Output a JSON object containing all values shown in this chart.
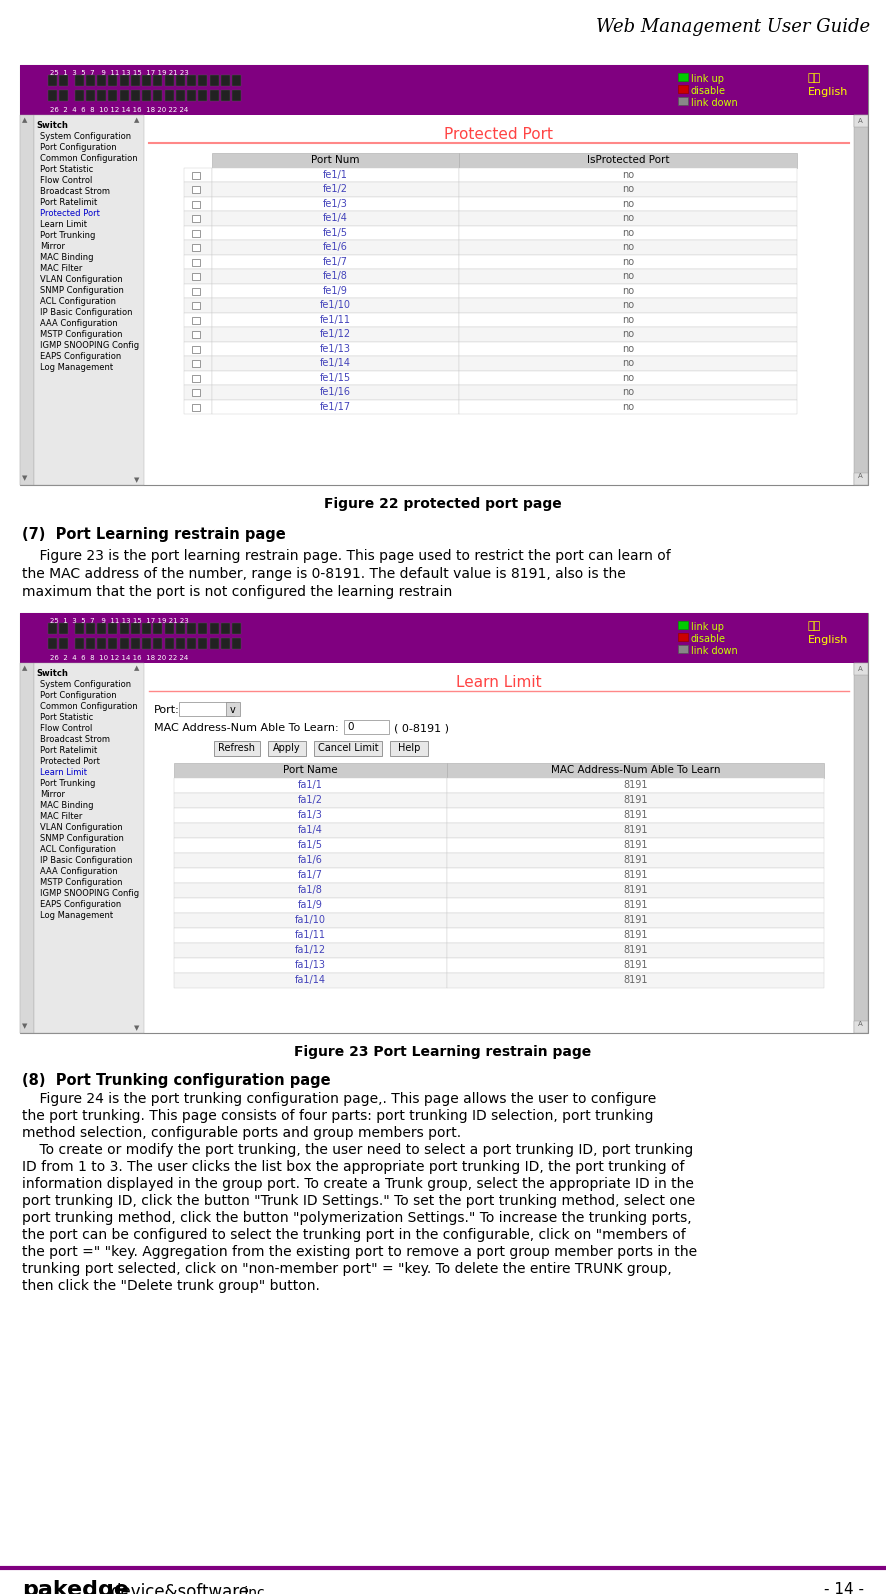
{
  "title": "Web Management User Guide",
  "page_bg": "#ffffff",
  "purple_color": "#800080",
  "figure22_caption": "Figure 22 protected port page",
  "section7_title": "(7)  Port Learning restrain page",
  "section7_line1": "    Figure 23 is the port learning restrain page. This page used to restrict the port can learn of",
  "section7_line2": "the MAC address of the number, range is 0-8191. The default value is 8191, also is the",
  "section7_line3": "maximum that the port is not configured the learning restrain",
  "figure23_caption": "Figure 23 Port Learning restrain page",
  "section8_title": "(8)  Port Trunking configuration page",
  "section8_lines": [
    "    Figure 24 is the port trunking configuration page,. This page allows the user to configure",
    "the port trunking. This page consists of four parts: port trunking ID selection, port trunking",
    "method selection, configurable ports and group members port.",
    "    To create or modify the port trunking, the user need to select a port trunking ID, port trunking",
    "ID from 1 to 3. The user clicks the list box the appropriate port trunking ID, the port trunking of",
    "information displayed in the group port. To create a Trunk group, select the appropriate ID in the",
    "port trunking ID, click the button \"Trunk ID Settings.\" To set the port trunking method, select one",
    "port trunking method, click the button \"polymerization Settings.\" To increase the trunking ports,",
    "the port can be configured to select the trunking port in the configurable, click on \"members of",
    "the port =\" \"key. Aggregation from the existing port to remove a port group member ports in the",
    "trunking port selected, click on \"non-member port\" = \"key. To delete the entire TRUNK group,",
    "then click the \"Delete trunk group\" button."
  ],
  "footer_right": "- 14 -",
  "protected_port_title": "Protected Port",
  "protected_port_headers": [
    "Port Num",
    "IsProtected Port"
  ],
  "protected_port_rows": [
    "fe1/1",
    "fe1/2",
    "fe1/3",
    "fe1/4",
    "fe1/5",
    "fe1/6",
    "fe1/7",
    "fe1/8",
    "fe1/9",
    "fe1/10",
    "fe1/11",
    "fe1/12",
    "fe1/13",
    "fe1/14",
    "fe1/15",
    "fe1/16",
    "fe1/17"
  ],
  "learn_limit_title": "Learn Limit",
  "learn_limit_headers": [
    "Port Name",
    "MAC Address-Num Able To Learn"
  ],
  "learn_limit_rows": [
    "fa1/1",
    "fa1/2",
    "fa1/3",
    "fa1/4",
    "fa1/5",
    "fa1/6",
    "fa1/7",
    "fa1/8",
    "fa1/9",
    "fa1/10",
    "fa1/11",
    "fa1/12",
    "fa1/13",
    "fa1/14"
  ],
  "sidebar_items_22": [
    [
      "Switch",
      true,
      false
    ],
    [
      "System Configuration",
      false,
      false
    ],
    [
      "Port Configuration",
      false,
      false
    ],
    [
      "Common Configuration",
      false,
      false
    ],
    [
      "Port Statistic",
      false,
      false
    ],
    [
      "Flow Control",
      false,
      false
    ],
    [
      "Broadcast Strom",
      false,
      false
    ],
    [
      "Port Ratelimit",
      false,
      false
    ],
    [
      "Protected Port",
      false,
      true
    ],
    [
      "Learn Limit",
      false,
      false
    ],
    [
      "Port Trunking",
      false,
      false
    ],
    [
      "Mirror",
      false,
      false
    ],
    [
      "MAC Binding",
      false,
      false
    ],
    [
      "MAC Filter",
      false,
      false
    ],
    [
      "VLAN Configuration",
      false,
      false
    ],
    [
      "SNMP Configuration",
      false,
      false
    ],
    [
      "ACL Configuration",
      false,
      false
    ],
    [
      "IP Basic Configuration",
      false,
      false
    ],
    [
      "AAA Configuration",
      false,
      false
    ],
    [
      "MSTP Configuration",
      false,
      false
    ],
    [
      "IGMP SNOOPING Config",
      false,
      false
    ],
    [
      "EAPS Configuration",
      false,
      false
    ],
    [
      "Log Management",
      false,
      false
    ]
  ],
  "sidebar_items_23": [
    [
      "Switch",
      true,
      false
    ],
    [
      "System Configuration",
      false,
      false
    ],
    [
      "Port Configuration",
      false,
      false
    ],
    [
      "Common Configuration",
      false,
      false
    ],
    [
      "Port Statistic",
      false,
      false
    ],
    [
      "Flow Control",
      false,
      false
    ],
    [
      "Broadcast Strom",
      false,
      false
    ],
    [
      "Port Ratelimit",
      false,
      false
    ],
    [
      "Protected Port",
      false,
      false
    ],
    [
      "Learn Limit",
      false,
      true
    ],
    [
      "Port Trunking",
      false,
      false
    ],
    [
      "Mirror",
      false,
      false
    ],
    [
      "MAC Binding",
      false,
      false
    ],
    [
      "MAC Filter",
      false,
      false
    ],
    [
      "VLAN Configuration",
      false,
      false
    ],
    [
      "SNMP Configuration",
      false,
      false
    ],
    [
      "ACL Configuration",
      false,
      false
    ],
    [
      "IP Basic Configuration",
      false,
      false
    ],
    [
      "AAA Configuration",
      false,
      false
    ],
    [
      "MSTP Configuration",
      false,
      false
    ],
    [
      "IGMP SNOOPING Config",
      false,
      false
    ],
    [
      "EAPS Configuration",
      false,
      false
    ],
    [
      "Log Management",
      false,
      false
    ]
  ]
}
